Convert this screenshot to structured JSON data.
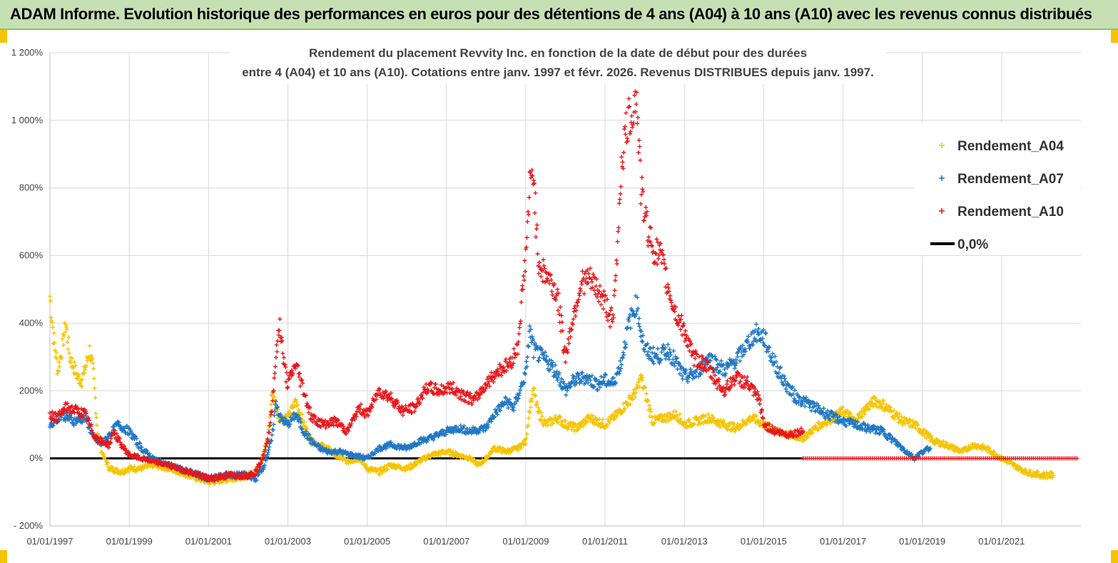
{
  "banner": {
    "title": "ADAM Informe. Evolution historique des performances en euros pour des détentions de 4 ans (A04) à 10 ans (A10) avec les revenus connus distribués"
  },
  "colors": {
    "banner_bg": "#c6e0b4",
    "A04": "#f5c400",
    "A07": "#1f77c4",
    "A10": "#e8161a",
    "zero": "#000000",
    "grid": "#d9d9d9"
  },
  "chart_data": {
    "type": "scatter",
    "title_line1": "Rendement du placement Revvity Inc. en fonction de la date de début pour des durées",
    "title_line2": "entre 4 (A04) et 10 ans (A10).  Cotations entre janv. 1997 et févr. 2026. Revenus DISTRIBUES depuis janv. 1997.",
    "x_range": [
      "1997-01-01",
      "2023-01-01"
    ],
    "ylim": [
      -200,
      1200
    ],
    "y_ticks": [
      -200,
      0,
      200,
      400,
      600,
      800,
      1000,
      1200
    ],
    "y_tick_labels": [
      "- 200%",
      "0%",
      "200%",
      "400%",
      "600%",
      "800%",
      "1 000%",
      "1 200%"
    ],
    "x_tick_labels": [
      "01/01/1997",
      "01/01/1999",
      "01/01/2001",
      "01/01/2003",
      "01/01/2005",
      "01/01/2007",
      "01/01/2009",
      "01/01/2011",
      "01/01/2013",
      "01/01/2015",
      "01/01/2017",
      "01/01/2019",
      "01/01/2021"
    ],
    "grid": true,
    "legend": "top-right",
    "series": [
      {
        "name": "Rendement_A04",
        "key": "A04",
        "marker": "+",
        "points": [
          [
            1997.0,
            480
          ],
          [
            1997.1,
            350
          ],
          [
            1997.2,
            260
          ],
          [
            1997.3,
            320
          ],
          [
            1997.4,
            400
          ],
          [
            1997.5,
            300
          ],
          [
            1997.6,
            270
          ],
          [
            1997.7,
            240
          ],
          [
            1997.8,
            230
          ],
          [
            1997.9,
            270
          ],
          [
            1998.0,
            320
          ],
          [
            1998.1,
            250
          ],
          [
            1998.2,
            80
          ],
          [
            1998.3,
            20
          ],
          [
            1998.5,
            -30
          ],
          [
            1998.8,
            -40
          ],
          [
            1999.0,
            -30
          ],
          [
            1999.3,
            -30
          ],
          [
            1999.6,
            -20
          ],
          [
            2000.0,
            -30
          ],
          [
            2000.5,
            -50
          ],
          [
            2001.0,
            -70
          ],
          [
            2001.5,
            -60
          ],
          [
            2002.0,
            -50
          ],
          [
            2002.2,
            -40
          ],
          [
            2002.4,
            20
          ],
          [
            2002.5,
            60
          ],
          [
            2002.6,
            200
          ],
          [
            2002.7,
            150
          ],
          [
            2002.8,
            120
          ],
          [
            2003.0,
            120
          ],
          [
            2003.2,
            170
          ],
          [
            2003.4,
            100
          ],
          [
            2003.6,
            50
          ],
          [
            2003.8,
            40
          ],
          [
            2004.0,
            30
          ],
          [
            2004.2,
            10
          ],
          [
            2004.5,
            -10
          ],
          [
            2004.8,
            0
          ],
          [
            2005.0,
            -30
          ],
          [
            2005.3,
            -40
          ],
          [
            2005.6,
            -20
          ],
          [
            2006.0,
            -30
          ],
          [
            2006.3,
            -10
          ],
          [
            2006.6,
            10
          ],
          [
            2007.0,
            20
          ],
          [
            2007.3,
            10
          ],
          [
            2007.6,
            0
          ],
          [
            2007.8,
            -20
          ],
          [
            2008.0,
            0
          ],
          [
            2008.2,
            30
          ],
          [
            2008.5,
            20
          ],
          [
            2008.8,
            30
          ],
          [
            2009.0,
            50
          ],
          [
            2009.1,
            150
          ],
          [
            2009.2,
            200
          ],
          [
            2009.3,
            140
          ],
          [
            2009.5,
            100
          ],
          [
            2009.8,
            120
          ],
          [
            2010.0,
            100
          ],
          [
            2010.3,
            90
          ],
          [
            2010.6,
            120
          ],
          [
            2011.0,
            100
          ],
          [
            2011.3,
            130
          ],
          [
            2011.6,
            170
          ],
          [
            2011.8,
            200
          ],
          [
            2011.9,
            240
          ],
          [
            2012.0,
            200
          ],
          [
            2012.2,
            110
          ],
          [
            2012.5,
            120
          ],
          [
            2012.8,
            130
          ],
          [
            2013.0,
            100
          ],
          [
            2013.3,
            110
          ],
          [
            2013.6,
            120
          ],
          [
            2014.0,
            100
          ],
          [
            2014.3,
            90
          ],
          [
            2014.7,
            120
          ],
          [
            2015.0,
            100
          ],
          [
            2015.3,
            80
          ],
          [
            2015.6,
            70
          ],
          [
            2016.0,
            60
          ],
          [
            2016.3,
            90
          ],
          [
            2016.6,
            110
          ],
          [
            2017.0,
            140
          ],
          [
            2017.3,
            110
          ],
          [
            2017.6,
            150
          ],
          [
            2017.8,
            170
          ],
          [
            2018.0,
            160
          ],
          [
            2018.2,
            140
          ],
          [
            2018.5,
            110
          ],
          [
            2018.8,
            100
          ],
          [
            2019.0,
            80
          ],
          [
            2019.3,
            50
          ],
          [
            2019.6,
            40
          ],
          [
            2020.0,
            20
          ],
          [
            2020.3,
            40
          ],
          [
            2020.6,
            30
          ],
          [
            2021.0,
            0
          ],
          [
            2021.3,
            -20
          ],
          [
            2021.6,
            -40
          ],
          [
            2022.0,
            -50
          ],
          [
            2022.3,
            -50
          ]
        ]
      },
      {
        "name": "Rendement_A07",
        "key": "A07",
        "marker": "+",
        "points": [
          [
            1997.0,
            100
          ],
          [
            1997.3,
            130
          ],
          [
            1997.6,
            110
          ],
          [
            1997.9,
            120
          ],
          [
            1998.1,
            60
          ],
          [
            1998.3,
            40
          ],
          [
            1998.5,
            70
          ],
          [
            1998.7,
            100
          ],
          [
            1999.0,
            80
          ],
          [
            1999.3,
            30
          ],
          [
            1999.6,
            0
          ],
          [
            2000.0,
            -20
          ],
          [
            2000.5,
            -40
          ],
          [
            2001.0,
            -60
          ],
          [
            2001.5,
            -50
          ],
          [
            2002.0,
            -50
          ],
          [
            2002.2,
            -60
          ],
          [
            2002.4,
            -20
          ],
          [
            2002.6,
            60
          ],
          [
            2002.7,
            170
          ],
          [
            2002.8,
            120
          ],
          [
            2003.0,
            100
          ],
          [
            2003.2,
            130
          ],
          [
            2003.4,
            80
          ],
          [
            2003.6,
            50
          ],
          [
            2003.8,
            30
          ],
          [
            2004.0,
            20
          ],
          [
            2004.3,
            20
          ],
          [
            2004.6,
            10
          ],
          [
            2005.0,
            0
          ],
          [
            2005.3,
            30
          ],
          [
            2005.6,
            40
          ],
          [
            2006.0,
            30
          ],
          [
            2006.3,
            50
          ],
          [
            2006.6,
            60
          ],
          [
            2007.0,
            80
          ],
          [
            2007.3,
            90
          ],
          [
            2007.6,
            80
          ],
          [
            2008.0,
            90
          ],
          [
            2008.2,
            130
          ],
          [
            2008.5,
            170
          ],
          [
            2008.7,
            150
          ],
          [
            2009.0,
            250
          ],
          [
            2009.1,
            380
          ],
          [
            2009.2,
            320
          ],
          [
            2009.4,
            300
          ],
          [
            2009.6,
            280
          ],
          [
            2009.8,
            250
          ],
          [
            2010.0,
            200
          ],
          [
            2010.2,
            230
          ],
          [
            2010.5,
            240
          ],
          [
            2010.8,
            220
          ],
          [
            2011.0,
            230
          ],
          [
            2011.2,
            220
          ],
          [
            2011.4,
            280
          ],
          [
            2011.6,
            400
          ],
          [
            2011.8,
            460
          ],
          [
            2011.9,
            380
          ],
          [
            2012.0,
            320
          ],
          [
            2012.3,
            300
          ],
          [
            2012.6,
            320
          ],
          [
            2012.8,
            280
          ],
          [
            2013.0,
            240
          ],
          [
            2013.3,
            250
          ],
          [
            2013.6,
            300
          ],
          [
            2014.0,
            260
          ],
          [
            2014.3,
            290
          ],
          [
            2014.6,
            340
          ],
          [
            2014.8,
            370
          ],
          [
            2015.0,
            360
          ],
          [
            2015.2,
            300
          ],
          [
            2015.5,
            230
          ],
          [
            2015.8,
            180
          ],
          [
            2016.0,
            170
          ],
          [
            2016.3,
            150
          ],
          [
            2016.6,
            130
          ],
          [
            2017.0,
            110
          ],
          [
            2017.3,
            100
          ],
          [
            2017.6,
            90
          ],
          [
            2018.0,
            80
          ],
          [
            2018.3,
            50
          ],
          [
            2018.6,
            20
          ],
          [
            2018.8,
            0
          ],
          [
            2019.0,
            20
          ],
          [
            2019.2,
            30
          ]
        ]
      },
      {
        "name": "Rendement_A10",
        "key": "A10",
        "marker": "+",
        "points": [
          [
            1997.0,
            130
          ],
          [
            1997.2,
            120
          ],
          [
            1997.4,
            150
          ],
          [
            1997.7,
            140
          ],
          [
            1997.9,
            130
          ],
          [
            1998.1,
            70
          ],
          [
            1998.3,
            50
          ],
          [
            1998.5,
            40
          ],
          [
            1998.6,
            80
          ],
          [
            1998.8,
            40
          ],
          [
            1999.0,
            10
          ],
          [
            1999.3,
            0
          ],
          [
            1999.6,
            -10
          ],
          [
            2000.0,
            -20
          ],
          [
            2000.5,
            -40
          ],
          [
            2001.0,
            -60
          ],
          [
            2001.5,
            -50
          ],
          [
            2002.0,
            -50
          ],
          [
            2002.2,
            -40
          ],
          [
            2002.4,
            10
          ],
          [
            2002.5,
            60
          ],
          [
            2002.6,
            150
          ],
          [
            2002.7,
            300
          ],
          [
            2002.8,
            400
          ],
          [
            2002.9,
            280
          ],
          [
            2003.0,
            220
          ],
          [
            2003.2,
            280
          ],
          [
            2003.4,
            200
          ],
          [
            2003.6,
            120
          ],
          [
            2003.9,
            100
          ],
          [
            2004.2,
            110
          ],
          [
            2004.5,
            80
          ],
          [
            2004.8,
            150
          ],
          [
            2005.0,
            130
          ],
          [
            2005.3,
            200
          ],
          [
            2005.6,
            180
          ],
          [
            2005.9,
            140
          ],
          [
            2006.2,
            150
          ],
          [
            2006.5,
            210
          ],
          [
            2006.8,
            200
          ],
          [
            2007.1,
            210
          ],
          [
            2007.4,
            190
          ],
          [
            2007.7,
            170
          ],
          [
            2008.0,
            220
          ],
          [
            2008.3,
            260
          ],
          [
            2008.6,
            280
          ],
          [
            2008.8,
            330
          ],
          [
            2008.9,
            470
          ],
          [
            2009.0,
            600
          ],
          [
            2009.1,
            800
          ],
          [
            2009.2,
            850
          ],
          [
            2009.3,
            600
          ],
          [
            2009.4,
            560
          ],
          [
            2009.6,
            530
          ],
          [
            2009.8,
            480
          ],
          [
            2010.0,
            300
          ],
          [
            2010.2,
            420
          ],
          [
            2010.4,
            520
          ],
          [
            2010.6,
            530
          ],
          [
            2010.8,
            500
          ],
          [
            2011.0,
            460
          ],
          [
            2011.2,
            400
          ],
          [
            2011.3,
            600
          ],
          [
            2011.4,
            850
          ],
          [
            2011.5,
            950
          ],
          [
            2011.6,
            1000
          ],
          [
            2011.8,
            1070
          ],
          [
            2011.9,
            800
          ],
          [
            2012.0,
            720
          ],
          [
            2012.2,
            620
          ],
          [
            2012.4,
            600
          ],
          [
            2012.6,
            500
          ],
          [
            2012.8,
            420
          ],
          [
            2013.0,
            380
          ],
          [
            2013.2,
            300
          ],
          [
            2013.5,
            280
          ],
          [
            2013.8,
            230
          ],
          [
            2014.0,
            200
          ],
          [
            2014.3,
            240
          ],
          [
            2014.6,
            220
          ],
          [
            2014.9,
            170
          ],
          [
            2015.0,
            100
          ],
          [
            2015.3,
            80
          ],
          [
            2015.6,
            70
          ],
          [
            2016.0,
            80
          ]
        ]
      }
    ],
    "zero_segments": [
      {
        "name": "0,0%",
        "key": "zero",
        "from": 1997.0,
        "to": 2016.0
      },
      {
        "key": "A10",
        "from": 2016.0,
        "to": 2022.9
      }
    ]
  }
}
